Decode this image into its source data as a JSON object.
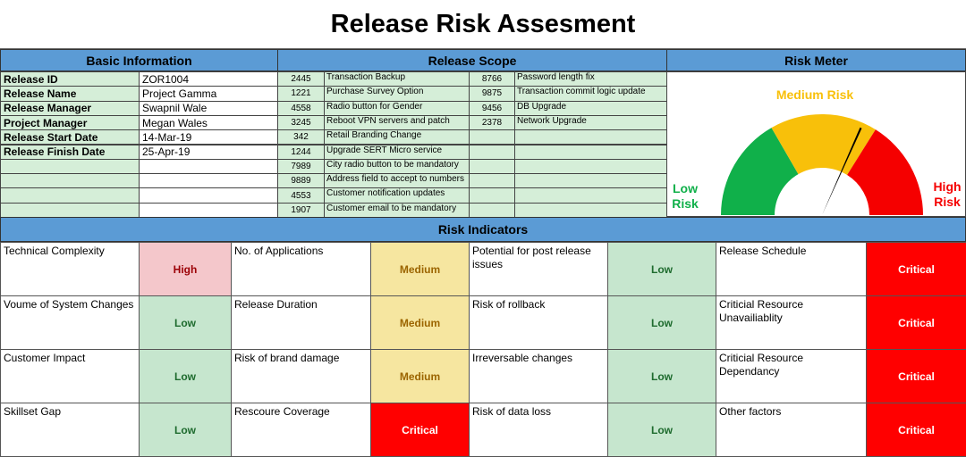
{
  "title": "Release Risk Assesment",
  "sections": {
    "basic": "Basic Information",
    "scope": "Release Scope",
    "meter": "Risk Meter",
    "indicators": "Risk Indicators"
  },
  "basic_info": [
    {
      "label": "Release ID",
      "value": "ZOR1004"
    },
    {
      "label": "Release Name",
      "value": "Project Gamma"
    },
    {
      "label": "Release Manager",
      "value": "Swapnil Wale"
    },
    {
      "label": "Project Manager",
      "value": "Megan Wales"
    },
    {
      "label": "Release Start Date",
      "value": "14-Mar-19"
    },
    {
      "label": "Release Finish Date",
      "value": "25-Apr-19"
    },
    {
      "label": "",
      "value": ""
    },
    {
      "label": "",
      "value": ""
    },
    {
      "label": "",
      "value": ""
    },
    {
      "label": "",
      "value": ""
    }
  ],
  "scope": [
    {
      "id1": "2445",
      "d1": "Transaction Backup",
      "id2": "8766",
      "d2": "Password length fix"
    },
    {
      "id1": "1221",
      "d1": "Purchase Survey Option",
      "id2": "9875",
      "d2": "Transaction commit logic update"
    },
    {
      "id1": "4558",
      "d1": "Radio button for Gender",
      "id2": "9456",
      "d2": "DB Upgrade"
    },
    {
      "id1": "3245",
      "d1": "Reboot VPN servers and patch",
      "id2": "2378",
      "d2": "Network Upgrade"
    },
    {
      "id1": "342",
      "d1": "Retail Branding Change",
      "id2": "",
      "d2": ""
    },
    {
      "id1": "1244",
      "d1": "Upgrade SERT Micro service",
      "id2": "",
      "d2": ""
    },
    {
      "id1": "7989",
      "d1": "City radio button to be mandatory",
      "id2": "",
      "d2": ""
    },
    {
      "id1": "9889",
      "d1": "Address field to accept to numbers",
      "id2": "",
      "d2": ""
    },
    {
      "id1": "4553",
      "d1": "Customer notification updates",
      "id2": "",
      "d2": ""
    },
    {
      "id1": "1907",
      "d1": "Customer email to be mandatory",
      "id2": "",
      "d2": ""
    }
  ],
  "meter": {
    "low": "Low Risk",
    "medium": "Medium Risk",
    "high": "High Risk",
    "needle_fraction": 0.63,
    "colors": {
      "low": "#10b04a",
      "medium": "#f8c00a",
      "high": "#f50000"
    }
  },
  "indicators": [
    [
      {
        "label": "Technical Complexity",
        "level": "High"
      },
      {
        "label": "No. of Applications",
        "level": "Medium"
      },
      {
        "label": "Potential for post release issues",
        "level": "Low"
      },
      {
        "label": "Release Schedule",
        "level": "Critical"
      }
    ],
    [
      {
        "label": "Voume of System Changes",
        "level": "Low"
      },
      {
        "label": "Release Duration",
        "level": "Medium"
      },
      {
        "label": "Risk of rollback",
        "level": "Low"
      },
      {
        "label": "Criticial Resource Unavailiablity",
        "level": "Critical"
      }
    ],
    [
      {
        "label": "Customer Impact",
        "level": "Low"
      },
      {
        "label": "Risk of brand damage",
        "level": "Medium"
      },
      {
        "label": "Irreversable changes",
        "level": "Low"
      },
      {
        "label": "Criticial Resource Dependancy",
        "level": "Critical"
      }
    ],
    [
      {
        "label": "Skillset Gap",
        "level": "Low"
      },
      {
        "label": "Rescoure Coverage",
        "level": "Critical"
      },
      {
        "label": "Risk of data loss",
        "level": "Low"
      },
      {
        "label": "Other factors",
        "level": "Critical"
      }
    ]
  ]
}
